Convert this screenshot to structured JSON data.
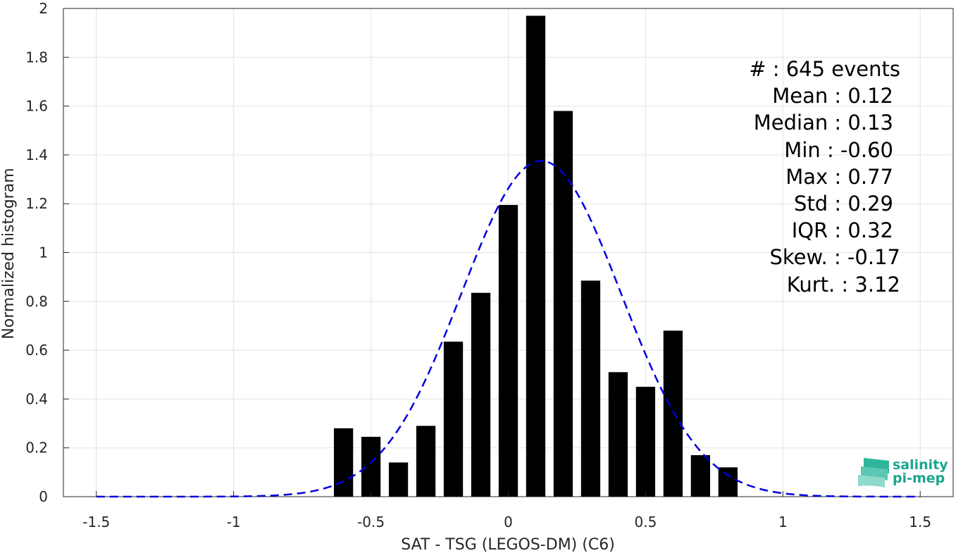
{
  "chart_data": {
    "type": "bar",
    "xlabel": "SAT - TSG (LEGOS-DM) (C6)",
    "ylabel": "Normalized histogram",
    "xlim": [
      -1.62,
      1.62
    ],
    "ylim": [
      0,
      2
    ],
    "x_ticks": [
      -1.5,
      -1,
      -0.5,
      0,
      0.5,
      1,
      1.5
    ],
    "x_tick_labels": [
      "-1.5",
      "-1",
      "-0.5",
      "0",
      "0.5",
      "1",
      "1.5"
    ],
    "y_ticks": [
      0,
      0.2,
      0.4,
      0.6,
      0.8,
      1,
      1.2,
      1.4,
      1.6,
      1.8,
      2
    ],
    "y_tick_labels": [
      "0",
      "0.2",
      "0.4",
      "0.6",
      "0.8",
      "1",
      "1.2",
      "1.4",
      "1.6",
      "1.8",
      "2"
    ],
    "grid": true,
    "bar_color": "#000000",
    "bar_width": 0.07,
    "bars": [
      {
        "x": -0.6,
        "y": 0.28
      },
      {
        "x": -0.5,
        "y": 0.245
      },
      {
        "x": -0.4,
        "y": 0.14
      },
      {
        "x": -0.3,
        "y": 0.29
      },
      {
        "x": -0.2,
        "y": 0.635
      },
      {
        "x": -0.1,
        "y": 0.835
      },
      {
        "x": 0.0,
        "y": 1.195
      },
      {
        "x": 0.1,
        "y": 1.97
      },
      {
        "x": 0.2,
        "y": 1.58
      },
      {
        "x": 0.3,
        "y": 0.885
      },
      {
        "x": 0.4,
        "y": 0.51
      },
      {
        "x": 0.5,
        "y": 0.45
      },
      {
        "x": 0.6,
        "y": 0.68
      },
      {
        "x": 0.7,
        "y": 0.17
      },
      {
        "x": 0.8,
        "y": 0.12
      }
    ],
    "fit_curve": {
      "color": "#0000dd",
      "style": "dashed",
      "mean": 0.12,
      "std": 0.29,
      "x_range": [
        -1.5,
        1.5
      ]
    }
  },
  "stats": [
    {
      "label": "#  : 645 events"
    },
    {
      "label": "Mean : 0.12"
    },
    {
      "label": "Median : 0.13"
    },
    {
      "label": "Min : -0.60"
    },
    {
      "label": "Max : 0.77"
    },
    {
      "label": "Std : 0.29"
    },
    {
      "label": "IQR : 0.32"
    },
    {
      "label": "Skew. : -0.17"
    },
    {
      "label": "Kurt. : 3.12"
    }
  ],
  "logo": {
    "line1": "salinity",
    "line2": "pi-mep",
    "color": "#1aa58e"
  }
}
